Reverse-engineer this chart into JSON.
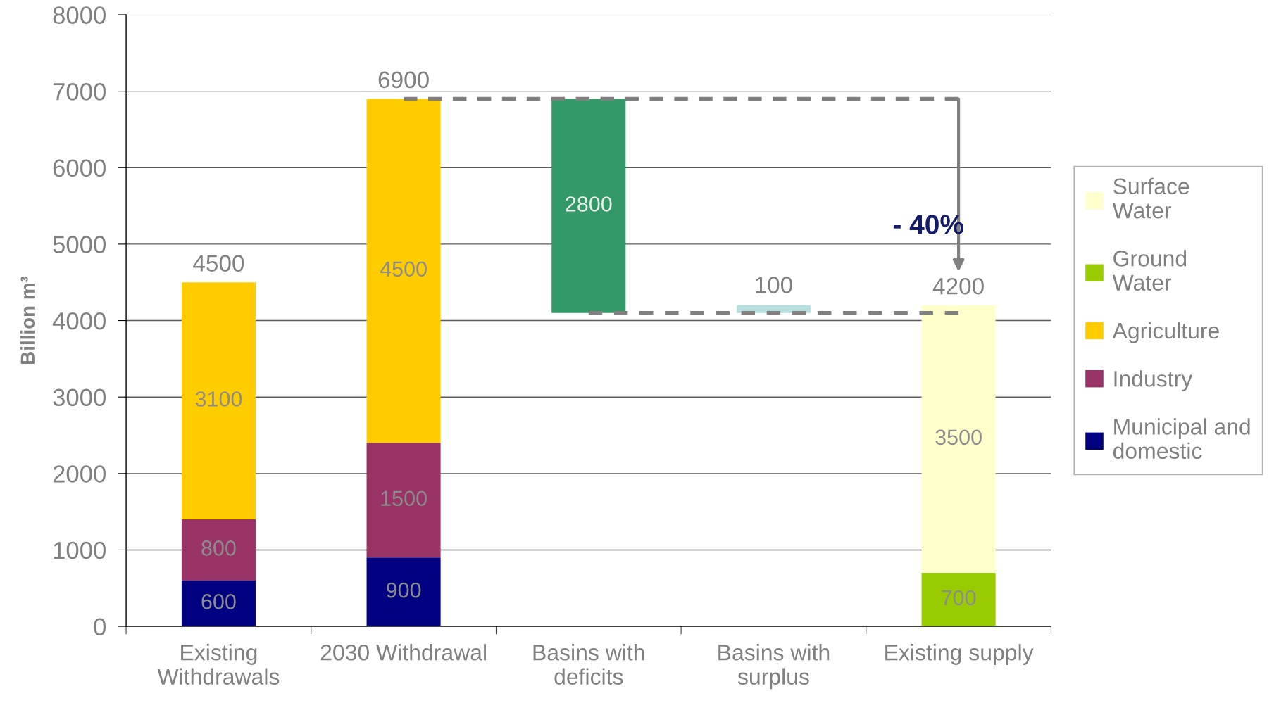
{
  "chart_data": {
    "type": "bar",
    "stacked": true,
    "ylabel": "Billion m³",
    "categories": [
      "Existing\nWithdrawals",
      "2030 Withdrawal",
      "Basins with\ndeficits",
      "Basins with\nsurplus",
      "Existing supply"
    ],
    "series": [
      {
        "name": "Municipal and\ndomestic",
        "color": "#000080",
        "values": [
          600,
          900,
          null,
          null,
          null
        ],
        "value_labels": [
          "600",
          "900",
          null,
          null,
          null
        ]
      },
      {
        "name": "Industry",
        "color": "#993366",
        "values": [
          800,
          1500,
          null,
          null,
          null
        ],
        "value_labels": [
          "800",
          "1500",
          null,
          null,
          null
        ]
      },
      {
        "name": "Agriculture",
        "color": "#ffcc00",
        "values": [
          3100,
          4500,
          null,
          null,
          null
        ],
        "value_labels": [
          "3100",
          "4500",
          null,
          null,
          null
        ]
      },
      {
        "name": "Ground\nWater",
        "color": "#99cc00",
        "values": [
          null,
          null,
          null,
          null,
          700
        ],
        "value_labels": [
          null,
          null,
          null,
          null,
          "700"
        ]
      },
      {
        "name": "Surface\nWater",
        "color": "#ffffcc",
        "values": [
          null,
          null,
          null,
          null,
          3500
        ],
        "value_labels": [
          null,
          null,
          null,
          null,
          "3500"
        ]
      },
      {
        "color": "#339966",
        "values": [
          null,
          null,
          2800,
          null,
          null
        ],
        "base": [
          null,
          null,
          4100,
          null,
          null
        ],
        "value_labels": [
          null,
          null,
          "2800",
          null,
          null
        ]
      },
      {
        "color": "#b7dfe0",
        "values": [
          null,
          null,
          null,
          100,
          null
        ],
        "base": [
          null,
          null,
          null,
          4100,
          null
        ],
        "value_labels": [
          null,
          null,
          null,
          "100",
          null
        ]
      },
      {
        "type": "line",
        "color": "#808080",
        "line_style": "dashed",
        "x": [
          "2030 Withdrawal",
          "Existing supply"
        ],
        "values": [
          6900,
          6900
        ]
      },
      {
        "type": "line",
        "color": "#808080",
        "line_style": "dashed",
        "x": [
          "Basins with\ndeficits",
          "Existing supply"
        ],
        "values": [
          4100,
          4100
        ]
      }
    ],
    "totals": [
      "4500",
      "6900",
      null,
      null,
      "4200"
    ],
    "annotations": [
      {
        "text": "- 40%",
        "x": "Existing supply",
        "y": 4200
      }
    ],
    "ylim": [
      0,
      8000
    ],
    "yticks": [
      0,
      1000,
      2000,
      3000,
      4000,
      5000,
      6000,
      7000,
      8000
    ],
    "grid": "y",
    "legend": "right"
  }
}
